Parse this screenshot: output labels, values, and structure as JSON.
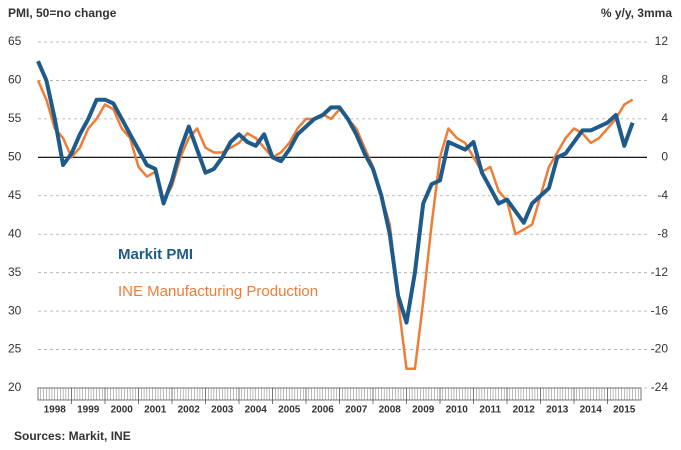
{
  "chart_data": {
    "type": "line",
    "y_label": "PMI, 50=no change",
    "y2_label": "% y/y, 3mma",
    "source": "Sources: Markit, INE",
    "categories": [
      "1998",
      "1999",
      "2000",
      "2001",
      "2002",
      "2003",
      "2004",
      "2005",
      "2006",
      "2007",
      "2008",
      "2009",
      "2010",
      "2011",
      "2012",
      "2013",
      "2014",
      "2015"
    ],
    "xlim": [
      1998,
      2016
    ],
    "x": [
      1998,
      1998.25,
      1998.5,
      1998.75,
      1999,
      1999.25,
      1999.5,
      1999.75,
      2000,
      2000.25,
      2000.5,
      2000.75,
      2001,
      2001.25,
      2001.5,
      2001.75,
      2002,
      2002.25,
      2002.5,
      2002.75,
      2003,
      2003.25,
      2003.5,
      2003.75,
      2004,
      2004.25,
      2004.5,
      2004.75,
      2005,
      2005.25,
      2005.5,
      2005.75,
      2006,
      2006.25,
      2006.5,
      2006.75,
      2007,
      2007.25,
      2007.5,
      2007.75,
      2008,
      2008.25,
      2008.5,
      2008.75,
      2009,
      2009.25,
      2009.5,
      2009.75,
      2010,
      2010.25,
      2010.5,
      2010.75,
      2011,
      2011.25,
      2011.5,
      2011.75,
      2012,
      2012.25,
      2012.5,
      2012.75,
      2013,
      2013.25,
      2013.5,
      2013.75,
      2014,
      2014.25,
      2014.5,
      2014.75,
      2015,
      2015.25,
      2015.5,
      2015.75
    ],
    "ylim": [
      20,
      65
    ],
    "yticks": [
      20,
      25,
      30,
      35,
      40,
      45,
      50,
      55,
      60,
      65
    ],
    "y2lim": [
      -24,
      12
    ],
    "y2ticks": [
      -24,
      -20,
      -16,
      -12,
      -8,
      -4,
      0,
      4,
      8,
      12
    ],
    "hline": 50,
    "grid": true,
    "series": [
      {
        "name": "Markit PMI",
        "color": "#1f5b8a",
        "values": [
          62.5,
          60,
          55,
          49,
          50.5,
          53,
          55,
          57.5,
          57.5,
          57,
          55,
          53,
          51,
          49,
          48.5,
          44,
          47,
          51,
          54,
          51,
          48,
          48.5,
          50,
          52,
          53,
          52,
          51.5,
          53,
          50,
          49.5,
          51,
          53,
          54,
          55,
          55.5,
          56.5,
          56.5,
          55,
          53,
          50.5,
          48.5,
          45,
          40,
          32,
          28.5,
          35,
          44,
          46.5,
          47,
          52,
          51.5,
          51,
          52,
          48,
          46,
          44,
          44.5,
          43,
          41.5,
          44,
          45,
          46,
          50,
          50.5,
          52,
          53.5,
          53.5,
          54,
          54.5,
          55.5,
          51.5,
          54.5
        ]
      },
      {
        "name": "INE Manufacturing Production",
        "color": "#f07c35",
        "axis": "y2",
        "values": [
          8,
          6,
          3,
          2,
          0,
          1,
          3,
          4,
          5.5,
          5,
          3,
          2,
          -1,
          -2,
          -1.5,
          -4.5,
          -3,
          0,
          2,
          3,
          1,
          0.5,
          0.5,
          1,
          1.5,
          2.5,
          2,
          1,
          0,
          0.5,
          1.5,
          3,
          4,
          4,
          4.5,
          4,
          5,
          4,
          3,
          1,
          -1,
          -4,
          -7,
          -15,
          -22,
          -22,
          -15,
          -7,
          0,
          3,
          2,
          1.5,
          0,
          -1.5,
          -1,
          -3.5,
          -4.5,
          -8,
          -7.5,
          -7,
          -4,
          -1,
          0.5,
          2,
          3,
          2.5,
          1.5,
          2,
          3,
          4,
          5.5,
          6
        ]
      }
    ]
  }
}
